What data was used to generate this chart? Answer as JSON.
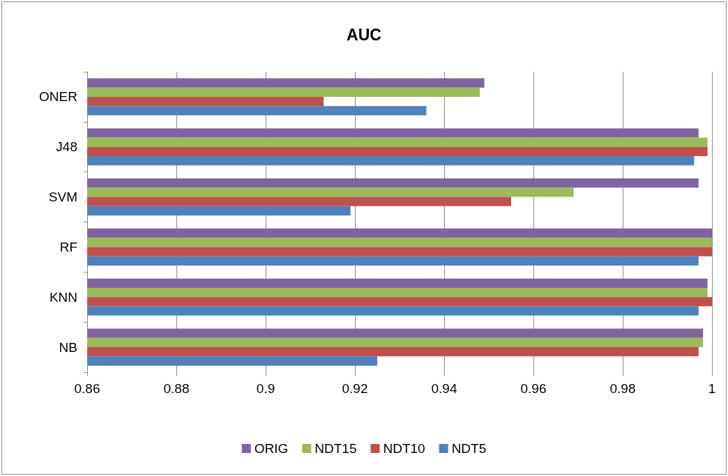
{
  "chart_data": {
    "type": "bar",
    "orientation": "horizontal",
    "title": "AUC",
    "categories": [
      "ONER",
      "J48",
      "SVM",
      "RF",
      "KNN",
      "NB"
    ],
    "series": [
      {
        "name": "ORIG",
        "color": "#8064a2",
        "values": [
          0.949,
          0.997,
          0.997,
          1,
          0.999,
          0.998
        ]
      },
      {
        "name": "NDT15",
        "color": "#9bbb59",
        "values": [
          0.948,
          0.999,
          0.969,
          1,
          0.999,
          0.998
        ]
      },
      {
        "name": "NDT10",
        "color": "#c0504d",
        "values": [
          0.913,
          0.999,
          0.955,
          1,
          1,
          0.997
        ]
      },
      {
        "name": "NDT5",
        "color": "#4f81bd",
        "values": [
          0.936,
          0.996,
          0.919,
          0.997,
          0.997,
          0.925
        ]
      }
    ],
    "xlim": [
      0.86,
      1
    ],
    "xticks": [
      0.86,
      0.88,
      0.9,
      0.92,
      0.94,
      0.96,
      0.98,
      1
    ],
    "grid": "x",
    "legend": "bottom"
  }
}
